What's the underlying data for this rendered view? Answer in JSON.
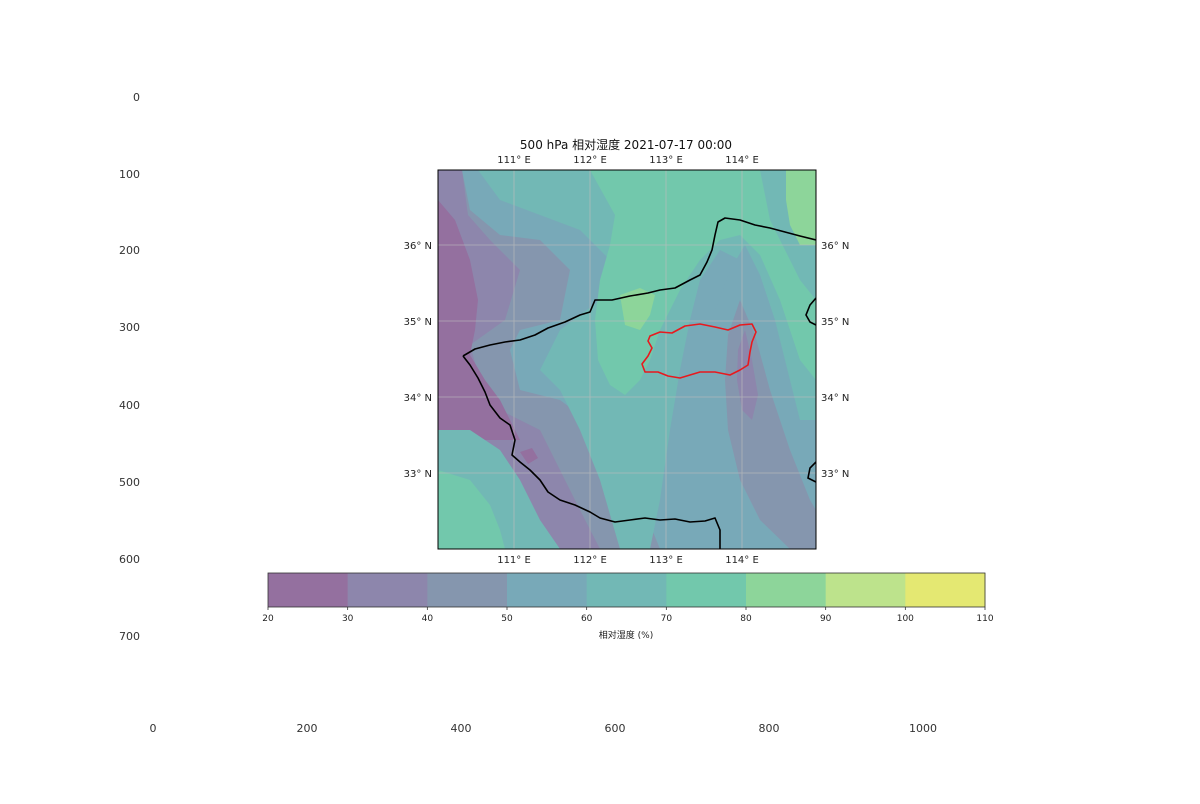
{
  "figure": {
    "title": "500 hPa 相对湿度 2021-07-17 00:00",
    "outer_axes": {
      "y_ticks": [
        "0",
        "100",
        "200",
        "300",
        "400",
        "500",
        "600",
        "700"
      ],
      "x_ticks": [
        "0",
        "200",
        "400",
        "600",
        "800",
        "1000"
      ]
    },
    "map": {
      "lon_ticks": [
        "111° E",
        "112° E",
        "113° E",
        "114° E"
      ],
      "lat_ticks": [
        "36° N",
        "35° N",
        "34° N",
        "33° N"
      ],
      "lon_range": [
        110,
        115
      ],
      "lat_range": [
        32,
        37
      ],
      "boundary_color": "#000000",
      "highlight_region_color": "#e8191e",
      "gridline_color": "#bdbdbd"
    },
    "colorbar": {
      "label": "相对湿度 (%)",
      "ticks": [
        "20",
        "30",
        "40",
        "50",
        "60",
        "70",
        "80",
        "90",
        "100",
        "110"
      ],
      "levels": [
        20,
        30,
        40,
        50,
        60,
        70,
        80,
        90,
        100,
        110
      ],
      "colors": [
        "#94709f",
        "#8d86ac",
        "#8596ae",
        "#78a9b8",
        "#72b8b5",
        "#72c8ac",
        "#8dd59a",
        "#bde38c",
        "#e4e872"
      ]
    }
  }
}
